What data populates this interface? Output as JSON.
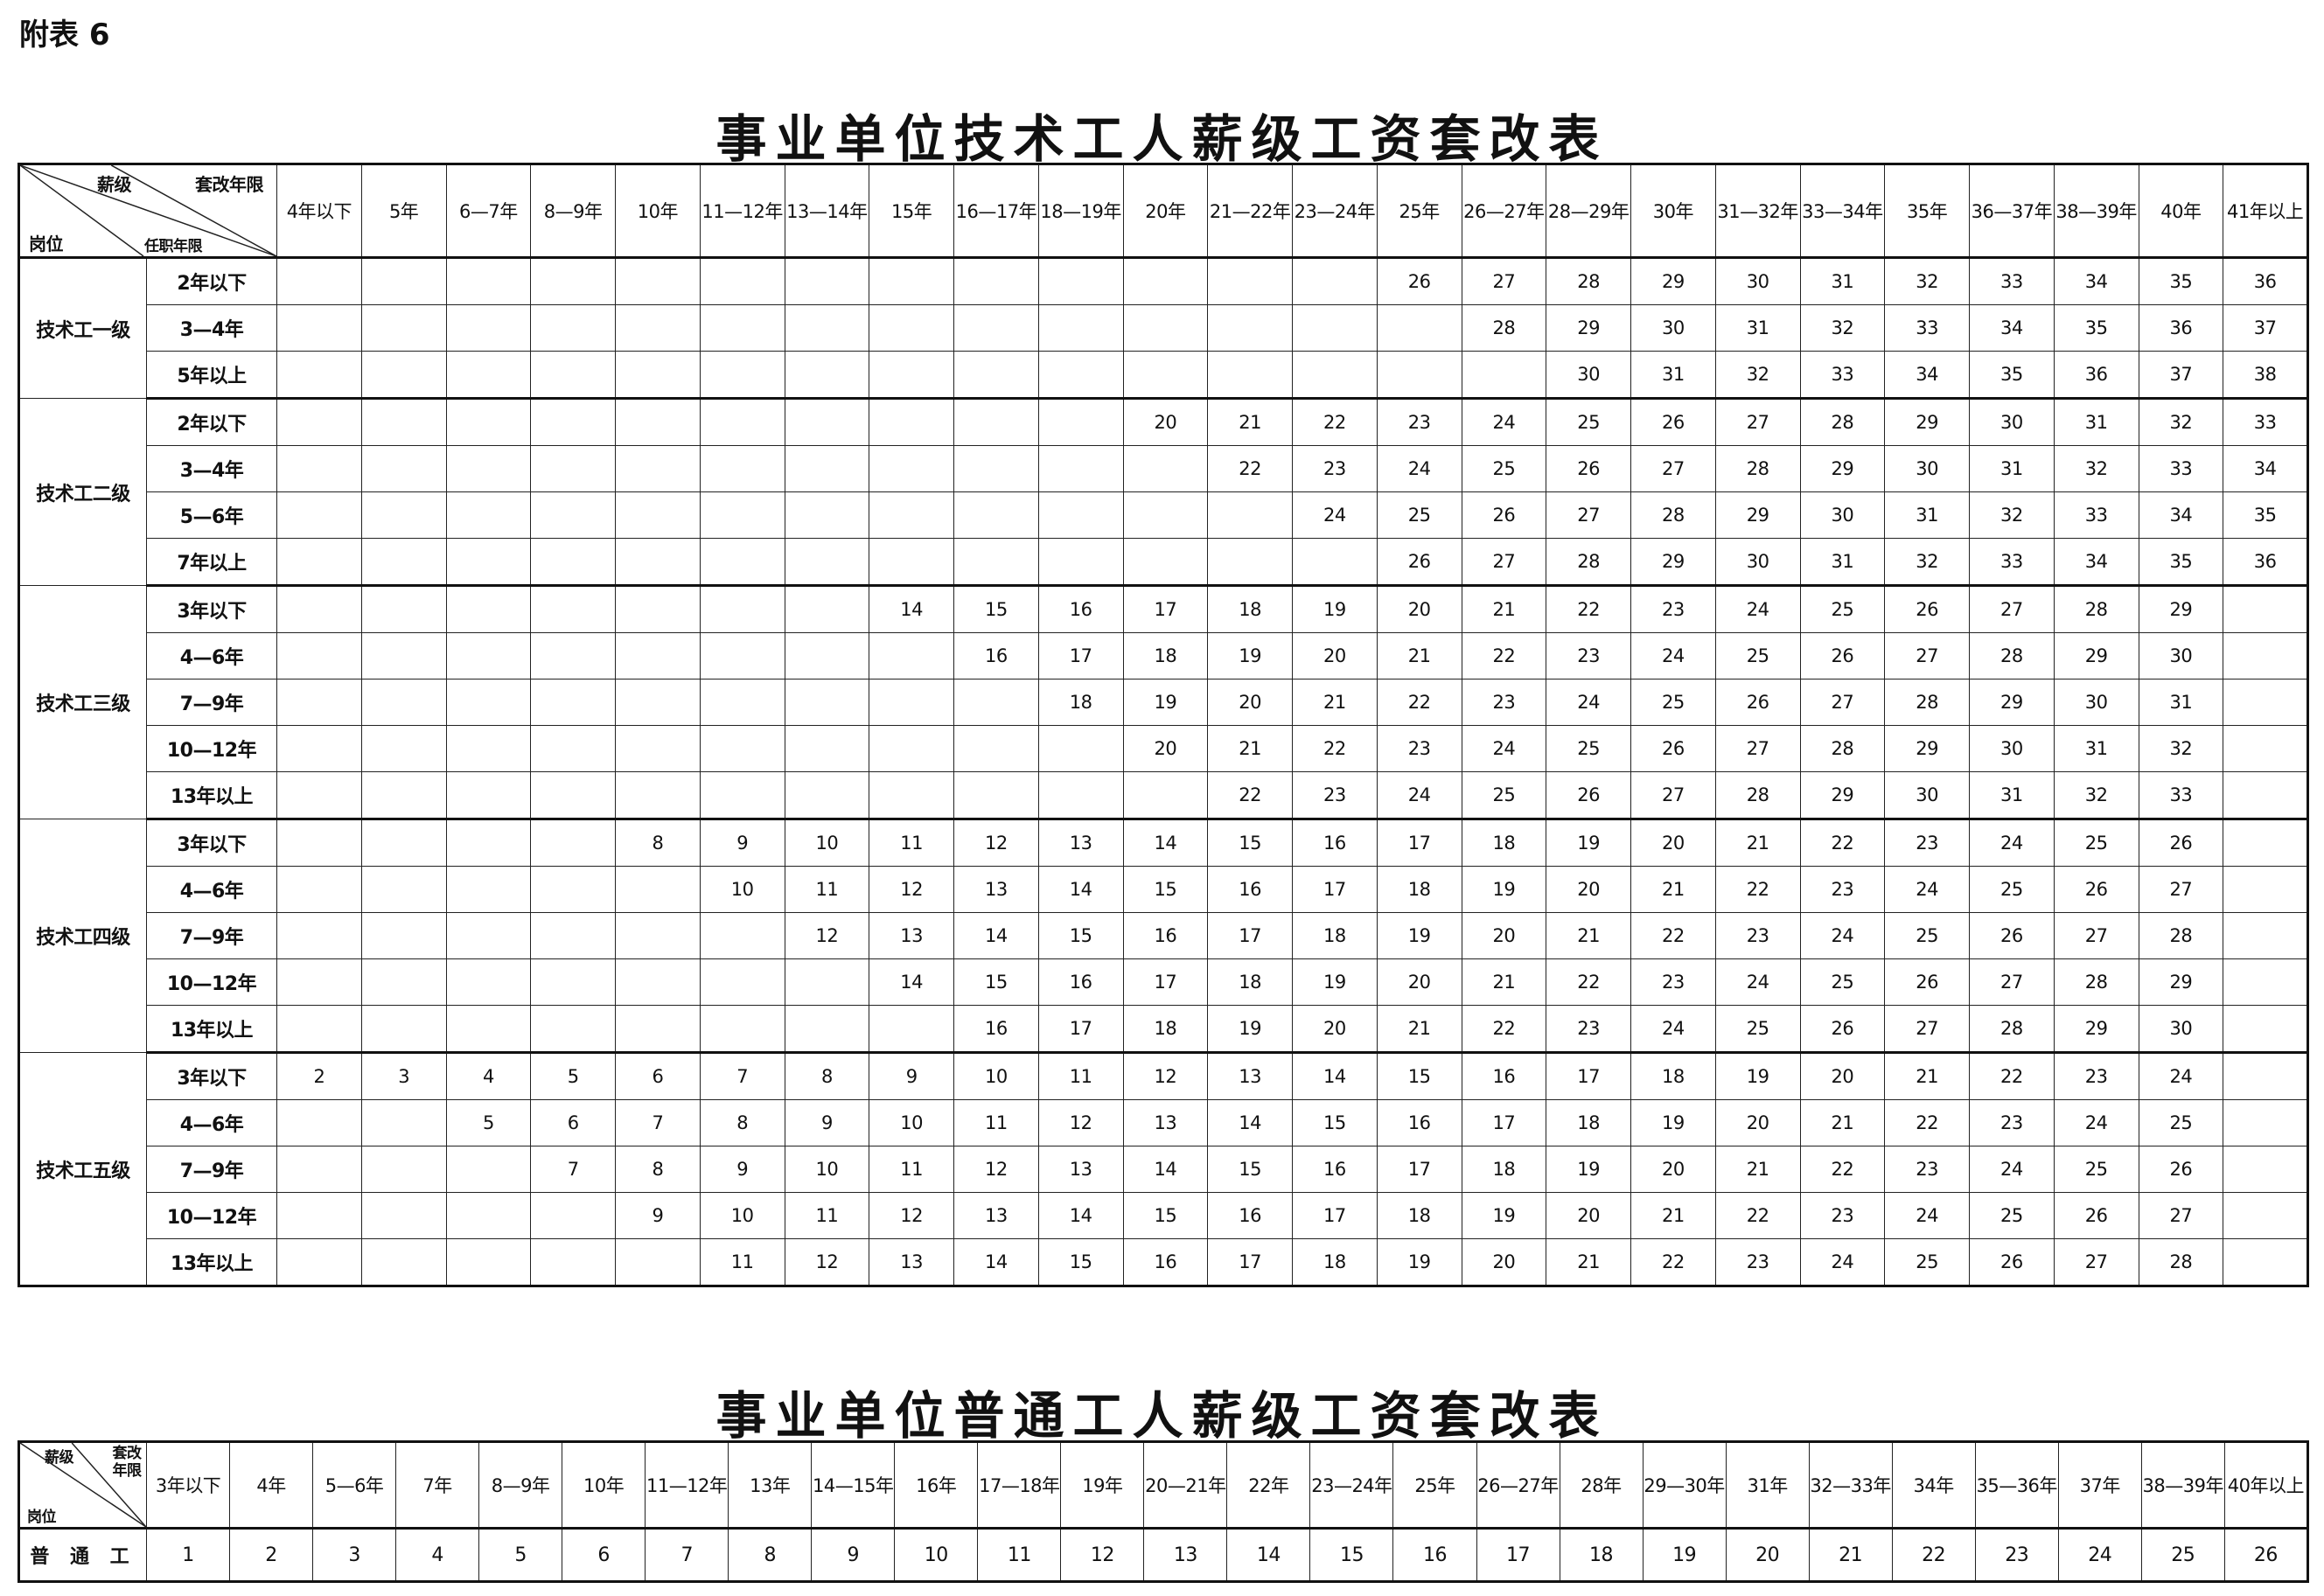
{
  "appendix_label": "附表 6",
  "table1": {
    "title": "事业单位技术工人薪级工资套改表",
    "corner": {
      "top_left": "薪级",
      "top_right": "套改年限",
      "bottom_left": "岗位",
      "bottom_mid": "任职年限"
    },
    "columns": [
      "4年以下",
      "5年",
      "6—7年",
      "8—9年",
      "10年",
      "11—12年",
      "13—14年",
      "15年",
      "16—17年",
      "18—19年",
      "20年",
      "21—22年",
      "23—24年",
      "25年",
      "26—27年",
      "28—29年",
      "30年",
      "31—32年",
      "33—34年",
      "35年",
      "36—37年",
      "38—39年",
      "40年",
      "41年以上"
    ],
    "groups": [
      {
        "position": "技术工一级",
        "rows": [
          {
            "tenure": "2年以下",
            "from": "25年",
            "values": [
              26,
              27,
              28,
              29,
              30,
              31,
              32,
              33,
              34,
              35,
              36
            ]
          },
          {
            "tenure": "3—4年",
            "from": "26—27年",
            "values": [
              28,
              29,
              30,
              31,
              32,
              33,
              34,
              35,
              36,
              37
            ]
          },
          {
            "tenure": "5年以上",
            "from": "28—29年",
            "values": [
              30,
              31,
              32,
              33,
              34,
              35,
              36,
              37,
              38
            ]
          }
        ]
      },
      {
        "position": "技术工二级",
        "rows": [
          {
            "tenure": "2年以下",
            "from": "20年",
            "values": [
              20,
              21,
              22,
              23,
              24,
              25,
              26,
              27,
              28,
              29,
              30,
              31,
              32,
              33
            ]
          },
          {
            "tenure": "3—4年",
            "from": "21—22年",
            "values": [
              22,
              23,
              24,
              25,
              26,
              27,
              28,
              29,
              30,
              31,
              32,
              33,
              34
            ]
          },
          {
            "tenure": "5—6年",
            "from": "23—24年",
            "values": [
              24,
              25,
              26,
              27,
              28,
              29,
              30,
              31,
              32,
              33,
              34,
              35
            ]
          },
          {
            "tenure": "7年以上",
            "from": "25年",
            "values": [
              26,
              27,
              28,
              29,
              30,
              31,
              32,
              33,
              34,
              35,
              36
            ]
          }
        ]
      },
      {
        "position": "技术工三级",
        "rows": [
          {
            "tenure": "3年以下",
            "from": "15年",
            "values": [
              14,
              15,
              16,
              17,
              18,
              19,
              20,
              21,
              22,
              23,
              24,
              25,
              26,
              27,
              28,
              29
            ]
          },
          {
            "tenure": "4—6年",
            "from": "16—17年",
            "values": [
              16,
              17,
              18,
              19,
              20,
              21,
              22,
              23,
              24,
              25,
              26,
              27,
              28,
              29,
              30
            ]
          },
          {
            "tenure": "7—9年",
            "from": "18—19年",
            "values": [
              18,
              19,
              20,
              21,
              22,
              23,
              24,
              25,
              26,
              27,
              28,
              29,
              30,
              31
            ]
          },
          {
            "tenure": "10—12年",
            "from": "20年",
            "values": [
              20,
              21,
              22,
              23,
              24,
              25,
              26,
              27,
              28,
              29,
              30,
              31,
              32
            ]
          },
          {
            "tenure": "13年以上",
            "from": "21—22年",
            "values": [
              22,
              23,
              24,
              25,
              26,
              27,
              28,
              29,
              30,
              31,
              32,
              33
            ]
          }
        ]
      },
      {
        "position": "技术工四级",
        "rows": [
          {
            "tenure": "3年以下",
            "from": "10年",
            "values": [
              8,
              9,
              10,
              11,
              12,
              13,
              14,
              15,
              16,
              17,
              18,
              19,
              20,
              21,
              22,
              23,
              24,
              25,
              26
            ]
          },
          {
            "tenure": "4—6年",
            "from": "11—12年",
            "values": [
              10,
              11,
              12,
              13,
              14,
              15,
              16,
              17,
              18,
              19,
              20,
              21,
              22,
              23,
              24,
              25,
              26,
              27
            ]
          },
          {
            "tenure": "7—9年",
            "from": "13—14年",
            "values": [
              12,
              13,
              14,
              15,
              16,
              17,
              18,
              19,
              20,
              21,
              22,
              23,
              24,
              25,
              26,
              27,
              28
            ]
          },
          {
            "tenure": "10—12年",
            "from": "15年",
            "values": [
              14,
              15,
              16,
              17,
              18,
              19,
              20,
              21,
              22,
              23,
              24,
              25,
              26,
              27,
              28,
              29
            ]
          },
          {
            "tenure": "13年以上",
            "from": "16—17年",
            "values": [
              16,
              17,
              18,
              19,
              20,
              21,
              22,
              23,
              24,
              25,
              26,
              27,
              28,
              29,
              30
            ]
          }
        ]
      },
      {
        "position": "技术工五级",
        "rows": [
          {
            "tenure": "3年以下",
            "from": "4年以下",
            "values": [
              2,
              3,
              4,
              5,
              6,
              7,
              8,
              9,
              10,
              11,
              12,
              13,
              14,
              15,
              16,
              17,
              18,
              19,
              20,
              21,
              22,
              23,
              24
            ]
          },
          {
            "tenure": "4—6年",
            "from": "6—7年",
            "values": [
              5,
              6,
              7,
              8,
              9,
              10,
              11,
              12,
              13,
              14,
              15,
              16,
              17,
              18,
              19,
              20,
              21,
              22,
              23,
              24,
              25
            ]
          },
          {
            "tenure": "7—9年",
            "from": "8—9年",
            "values": [
              7,
              8,
              9,
              10,
              11,
              12,
              13,
              14,
              15,
              16,
              17,
              18,
              19,
              20,
              21,
              22,
              23,
              24,
              25,
              26
            ]
          },
          {
            "tenure": "10—12年",
            "from": "10年",
            "values": [
              9,
              10,
              11,
              12,
              13,
              14,
              15,
              16,
              17,
              18,
              19,
              20,
              21,
              22,
              23,
              24,
              25,
              26,
              27
            ]
          },
          {
            "tenure": "13年以上",
            "from": "11—12年",
            "values": [
              11,
              12,
              13,
              14,
              15,
              16,
              17,
              18,
              19,
              20,
              21,
              22,
              23,
              24,
              25,
              26,
              27,
              28
            ]
          }
        ]
      }
    ]
  },
  "table2": {
    "title": "事业单位普通工人薪级工资套改表",
    "corner": {
      "top_left": "薪级",
      "top_right": "套改年限",
      "bottom_left": "岗位"
    },
    "columns": [
      "3年以下",
      "4年",
      "5—6年",
      "7年",
      "8—9年",
      "10年",
      "11—12年",
      "13年",
      "14—15年",
      "16年",
      "17—18年",
      "19年",
      "20—21年",
      "22年",
      "23—24年",
      "25年",
      "26—27年",
      "28年",
      "29—30年",
      "31年",
      "32—33年",
      "34年",
      "35—36年",
      "37年",
      "38—39年",
      "40年以上"
    ],
    "row": {
      "position": "普 通 工",
      "values": [
        1,
        2,
        3,
        4,
        5,
        6,
        7,
        8,
        9,
        10,
        11,
        12,
        13,
        14,
        15,
        16,
        17,
        18,
        19,
        20,
        21,
        22,
        23,
        24,
        25,
        26
      ]
    }
  }
}
